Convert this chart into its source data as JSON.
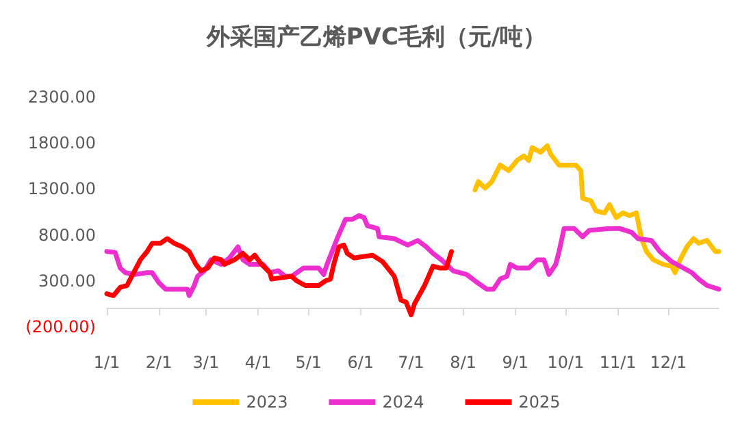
{
  "chart_data": {
    "type": "line",
    "title": "外采国产乙烯PVC毛利（元/吨）",
    "legend": "bottom",
    "grid": false,
    "xlim": [
      "--01-01",
      "--12-31"
    ],
    "xticks": [
      {
        "value": "--01-01",
        "label": "1/1"
      },
      {
        "value": "--02-01",
        "label": "2/1"
      },
      {
        "value": "--03-01",
        "label": "3/1"
      },
      {
        "value": "--04-01",
        "label": "4/1"
      },
      {
        "value": "--05-01",
        "label": "5/1"
      },
      {
        "value": "--06-01",
        "label": "6/1"
      },
      {
        "value": "--07-01",
        "label": "7/1"
      },
      {
        "value": "--08-01",
        "label": "8/1"
      },
      {
        "value": "--09-01",
        "label": "9/1"
      },
      {
        "value": "--10-01",
        "label": "10/1"
      },
      {
        "value": "--11-01",
        "label": "11/1"
      },
      {
        "value": "--12-01",
        "label": "12/1"
      }
    ],
    "ylim": [
      -200,
      2300
    ],
    "yticks": [
      {
        "value": -200,
        "label": "(200.00)"
      },
      {
        "value": 300,
        "label": "300.00"
      },
      {
        "value": 800,
        "label": "800.00"
      },
      {
        "value": 1300,
        "label": "1300.00"
      },
      {
        "value": 1800,
        "label": "1800.00"
      },
      {
        "value": 2300,
        "label": "2300.00"
      }
    ],
    "series": [
      {
        "name": "2023",
        "color": "#ffc000",
        "x": [
          "--08-08",
          "--08-10",
          "--08-14",
          "--08-18",
          "--08-23",
          "--08-28",
          "--09-02",
          "--09-06",
          "--09-09",
          "--09-11",
          "--09-16",
          "--09-20",
          "--09-22",
          "--09-27",
          "--10-07",
          "--10-10",
          "--10-11",
          "--10-16",
          "--10-19",
          "--10-24",
          "--10-27",
          "--10-31",
          "--11-04",
          "--11-08",
          "--11-12",
          "--11-15",
          "--11-18",
          "--11-22",
          "--11-28",
          "--12-03",
          "--12-05",
          "--12-08",
          "--12-12",
          "--12-16",
          "--12-19",
          "--12-24",
          "--12-29",
          "--12-31"
        ],
        "values": [
          1290,
          1380,
          1310,
          1380,
          1560,
          1500,
          1610,
          1660,
          1610,
          1750,
          1700,
          1770,
          1680,
          1560,
          1560,
          1500,
          1200,
          1170,
          1060,
          1040,
          1130,
          990,
          1040,
          1010,
          1040,
          760,
          620,
          530,
          480,
          460,
          390,
          530,
          670,
          760,
          710,
          740,
          620,
          620
        ]
      },
      {
        "name": "2024",
        "color": "#ee2fd0",
        "x": [
          "--01-01",
          "--01-06",
          "--01-09",
          "--01-12",
          "--01-18",
          "--01-25",
          "--01-28",
          "--02-01",
          "--02-05",
          "--02-11",
          "--02-18",
          "--02-19",
          "--02-22",
          "--02-24",
          "--02-28",
          "--03-04",
          "--03-10",
          "--03-15",
          "--03-20",
          "--03-23",
          "--03-27",
          "--04-04",
          "--04-08",
          "--04-13",
          "--04-17",
          "--04-21",
          "--04-28",
          "--05-07",
          "--05-10",
          "--05-12",
          "--05-18",
          "--05-23",
          "--05-27",
          "--05-31",
          "--06-03",
          "--06-05",
          "--06-11",
          "--06-12",
          "--06-21",
          "--06-29",
          "--07-05",
          "--07-10",
          "--07-14",
          "--07-19",
          "--07-26",
          "--08-03",
          "--08-08",
          "--08-15",
          "--08-19",
          "--08-23",
          "--08-27",
          "--08-29",
          "--09-02",
          "--09-09",
          "--09-14",
          "--09-18",
          "--09-21",
          "--09-25",
          "--09-27",
          "--09-30",
          "--10-06",
          "--10-11",
          "--10-15",
          "--10-27",
          "--11-02",
          "--11-09",
          "--11-13",
          "--11-21",
          "--11-26",
          "--12-03",
          "--12-08",
          "--12-15",
          "--12-19",
          "--12-24",
          "--12-31"
        ],
        "values": [
          620,
          610,
          440,
          390,
          370,
          390,
          390,
          280,
          210,
          210,
          210,
          140,
          250,
          350,
          410,
          530,
          480,
          550,
          670,
          530,
          480,
          480,
          390,
          410,
          350,
          350,
          440,
          440,
          370,
          480,
          760,
          970,
          970,
          1010,
          990,
          900,
          870,
          780,
          760,
          690,
          740,
          670,
          600,
          530,
          410,
          370,
          300,
          210,
          210,
          320,
          350,
          480,
          440,
          440,
          530,
          530,
          370,
          480,
          620,
          870,
          870,
          780,
          850,
          870,
          870,
          830,
          760,
          740,
          620,
          510,
          460,
          390,
          320,
          250,
          210
        ]
      },
      {
        "name": "2025",
        "color": "#ff0000",
        "x": [
          "--01-01",
          "--01-05",
          "--01-09",
          "--01-13",
          "--01-17",
          "--01-21",
          "--01-25",
          "--01-28",
          "--02-02",
          "--02-06",
          "--02-10",
          "--02-15",
          "--02-19",
          "--02-23",
          "--02-26",
          "--03-02",
          "--03-06",
          "--03-10",
          "--03-12",
          "--03-18",
          "--03-23",
          "--03-27",
          "--03-30",
          "--04-03",
          "--04-08",
          "--04-09",
          "--04-21",
          "--04-24",
          "--04-29",
          "--05-07",
          "--05-11",
          "--05-14",
          "--05-16",
          "--05-19",
          "--05-22",
          "--05-24",
          "--05-28",
          "--06-08",
          "--06-14",
          "--06-18",
          "--06-21",
          "--06-25",
          "--06-28",
          "--07-01",
          "--07-03",
          "--07-09",
          "--07-14",
          "--07-18",
          "--07-22",
          "--07-25"
        ],
        "values": [
          160,
          140,
          230,
          250,
          390,
          530,
          620,
          710,
          710,
          760,
          710,
          670,
          620,
          480,
          410,
          440,
          550,
          530,
          480,
          530,
          600,
          530,
          580,
          480,
          390,
          320,
          350,
          300,
          250,
          250,
          300,
          320,
          480,
          670,
          690,
          600,
          550,
          580,
          510,
          420,
          350,
          90,
          70,
          -70,
          50,
          250,
          460,
          440,
          440,
          620
        ]
      }
    ]
  }
}
